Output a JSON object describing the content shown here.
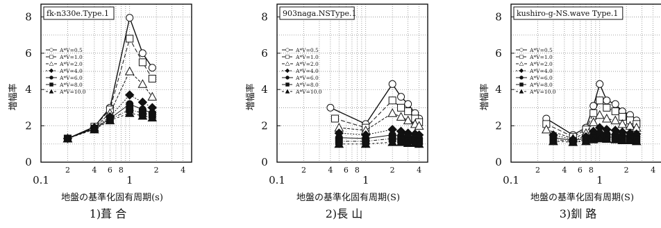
{
  "chart_data": [
    {
      "type": "line",
      "title": "fk-n330e.Type.1",
      "ylabel": "増幅率",
      "xlabel": "地盤の基準化固有周期(s)",
      "caption": "1)葺 合",
      "x_scale": "log",
      "xlim": [
        0.1,
        5
      ],
      "ylim": [
        0,
        8.7
      ],
      "y_ticks": [
        0,
        2,
        4,
        6,
        8
      ],
      "x_ticks_major": [
        "0.1",
        "1"
      ],
      "x_ticks_minor": [
        "2",
        "4",
        "6",
        "8",
        "2",
        "4"
      ],
      "grid": true,
      "legend": "upper-left",
      "series": [
        {
          "name": "A*V=0.5",
          "marker": "circle",
          "x": [
            0.2,
            0.4,
            0.6,
            1.0,
            1.4,
            1.8
          ],
          "y": [
            1.3,
            1.95,
            3.0,
            7.95,
            6.0,
            5.2
          ]
        },
        {
          "name": "A*V=1.0",
          "marker": "square",
          "x": [
            0.2,
            0.4,
            0.6,
            1.0,
            1.4,
            1.8
          ],
          "y": [
            1.3,
            1.95,
            2.9,
            6.8,
            5.5,
            4.6
          ]
        },
        {
          "name": "A*V=2.0",
          "marker": "triangle",
          "x": [
            0.2,
            0.4,
            0.6,
            1.0,
            1.4,
            1.8
          ],
          "y": [
            1.3,
            1.9,
            2.7,
            5.0,
            4.3,
            3.6
          ]
        },
        {
          "name": "A*V=4.0",
          "marker": "diamond",
          "x": [
            0.2,
            0.4,
            0.6,
            1.0,
            1.4,
            1.8
          ],
          "y": [
            1.3,
            1.9,
            2.5,
            3.7,
            3.3,
            3.0
          ]
        },
        {
          "name": "A*V=6.0",
          "marker": "circle-filled",
          "x": [
            0.2,
            0.4,
            0.6,
            1.0,
            1.4,
            1.8
          ],
          "y": [
            1.3,
            1.85,
            2.4,
            3.2,
            2.9,
            2.7
          ]
        },
        {
          "name": "A*V=8.0",
          "marker": "square-filled",
          "x": [
            0.2,
            0.4,
            0.6,
            1.0,
            1.4,
            1.8
          ],
          "y": [
            1.3,
            1.85,
            2.35,
            2.9,
            2.7,
            2.6
          ]
        },
        {
          "name": "A*V=10.0",
          "marker": "triangle-filled",
          "x": [
            0.2,
            0.4,
            0.6,
            1.0,
            1.4,
            1.8
          ],
          "y": [
            1.3,
            1.8,
            2.3,
            2.7,
            2.55,
            2.45
          ]
        }
      ]
    },
    {
      "type": "line",
      "title": "903naga.NSType.1",
      "ylabel": "増幅率",
      "xlabel": "地盤の基準化固有周期(S)",
      "caption": "2)長 山",
      "x_scale": "log",
      "xlim": [
        0.1,
        5
      ],
      "ylim": [
        0,
        8.7
      ],
      "y_ticks": [
        0,
        2,
        4,
        6,
        8
      ],
      "x_ticks_major": [
        "0.1",
        "1"
      ],
      "x_ticks_minor": [
        "2",
        "4",
        "6",
        "8",
        "2",
        "4"
      ],
      "grid": true,
      "legend": "upper-left",
      "series": [
        {
          "name": "A*V=0.5",
          "marker": "circle",
          "x": [
            0.4,
            1.0,
            2.0,
            2.5,
            3.0,
            3.6,
            4.0
          ],
          "y": [
            3.0,
            2.1,
            4.3,
            3.6,
            3.2,
            2.7,
            2.4
          ]
        },
        {
          "name": "A*V=1.0",
          "marker": "square",
          "x": [
            0.45,
            1.0,
            2.0,
            2.5,
            3.0,
            3.6,
            4.0
          ],
          "y": [
            2.4,
            1.9,
            3.4,
            3.0,
            2.8,
            2.4,
            2.2
          ]
        },
        {
          "name": "A*V=2.0",
          "marker": "triangle",
          "x": [
            0.5,
            1.0,
            2.0,
            2.5,
            3.0,
            3.6,
            4.0
          ],
          "y": [
            1.9,
            1.75,
            2.7,
            2.5,
            2.3,
            2.1,
            2.0
          ]
        },
        {
          "name": "A*V=4.0",
          "marker": "diamond",
          "x": [
            0.5,
            1.0,
            2.0,
            2.5,
            3.0,
            3.6,
            4.0
          ],
          "y": [
            1.6,
            1.5,
            1.8,
            1.7,
            1.6,
            1.55,
            1.5
          ]
        },
        {
          "name": "A*V=6.0",
          "marker": "circle-filled",
          "x": [
            0.5,
            1.0,
            2.0,
            2.5,
            3.0,
            3.6,
            4.0
          ],
          "y": [
            1.35,
            1.3,
            1.5,
            1.45,
            1.4,
            1.35,
            1.3
          ]
        },
        {
          "name": "A*V=8.0",
          "marker": "square-filled",
          "x": [
            0.5,
            1.0,
            2.0,
            2.5,
            3.0,
            3.6,
            4.0
          ],
          "y": [
            1.15,
            1.15,
            1.3,
            1.25,
            1.2,
            1.2,
            1.15
          ]
        },
        {
          "name": "A*V=10.0",
          "marker": "triangle-filled",
          "x": [
            0.5,
            1.0,
            2.0,
            2.5,
            3.0,
            3.6,
            4.0
          ],
          "y": [
            1.0,
            1.0,
            1.1,
            1.1,
            1.05,
            1.05,
            1.0
          ]
        }
      ]
    },
    {
      "type": "line",
      "title": "kushiro-g-NS.wave Type.1",
      "ylabel": "増幅率",
      "xlabel": "地盤の基準化固有周期(S)",
      "caption": "3)釧 路",
      "x_scale": "log",
      "xlim": [
        0.1,
        5
      ],
      "ylim": [
        0,
        8.7
      ],
      "y_ticks": [
        0,
        2,
        4,
        6,
        8
      ],
      "x_ticks_major": [
        "0.1",
        "1"
      ],
      "x_ticks_minor": [
        "2",
        "4",
        "6",
        "8",
        "2",
        "4"
      ],
      "grid": true,
      "legend": "upper-left",
      "series": [
        {
          "name": "A*V=0.5",
          "marker": "circle",
          "x": [
            0.25,
            0.5,
            0.7,
            0.85,
            1.0,
            1.2,
            1.5,
            1.8,
            2.2,
            2.6
          ],
          "y": [
            2.4,
            1.5,
            1.9,
            3.1,
            4.3,
            3.4,
            3.2,
            2.8,
            2.6,
            2.3
          ]
        },
        {
          "name": "A*V=1.0",
          "marker": "square",
          "x": [
            0.25,
            0.5,
            0.7,
            0.85,
            1.0,
            1.2,
            1.5,
            1.8,
            2.2,
            2.6
          ],
          "y": [
            2.1,
            1.4,
            1.8,
            2.7,
            3.4,
            3.0,
            2.8,
            2.5,
            2.3,
            2.1
          ]
        },
        {
          "name": "A*V=2.0",
          "marker": "triangle",
          "x": [
            0.25,
            0.5,
            0.7,
            0.85,
            1.0,
            1.2,
            1.5,
            1.8,
            2.2,
            2.6
          ],
          "y": [
            1.8,
            1.3,
            1.6,
            2.2,
            2.6,
            2.4,
            2.3,
            2.1,
            2.0,
            1.9
          ]
        },
        {
          "name": "A*V=4.0",
          "marker": "diamond",
          "x": [
            0.3,
            0.5,
            0.7,
            0.85,
            1.0,
            1.2,
            1.5,
            1.8,
            2.2,
            2.6
          ],
          "y": [
            1.5,
            1.25,
            1.4,
            1.7,
            1.9,
            1.8,
            1.75,
            1.65,
            1.6,
            1.55
          ]
        },
        {
          "name": "A*V=6.0",
          "marker": "circle-filled",
          "x": [
            0.3,
            0.5,
            0.7,
            0.85,
            1.0,
            1.2,
            1.5,
            1.8,
            2.2,
            2.6
          ],
          "y": [
            1.35,
            1.2,
            1.3,
            1.5,
            1.6,
            1.55,
            1.5,
            1.45,
            1.4,
            1.4
          ]
        },
        {
          "name": "A*V=8.0",
          "marker": "square-filled",
          "x": [
            0.3,
            0.5,
            0.7,
            0.85,
            1.0,
            1.2,
            1.5,
            1.8,
            2.2,
            2.6
          ],
          "y": [
            1.25,
            1.15,
            1.2,
            1.35,
            1.45,
            1.4,
            1.35,
            1.3,
            1.3,
            1.25
          ]
        },
        {
          "name": "A*V=10.0",
          "marker": "triangle-filled",
          "x": [
            0.3,
            0.5,
            0.7,
            0.85,
            1.0,
            1.2,
            1.5,
            1.8,
            2.2,
            2.6
          ],
          "y": [
            1.15,
            1.1,
            1.15,
            1.25,
            1.3,
            1.28,
            1.25,
            1.2,
            1.2,
            1.15
          ]
        }
      ]
    }
  ]
}
